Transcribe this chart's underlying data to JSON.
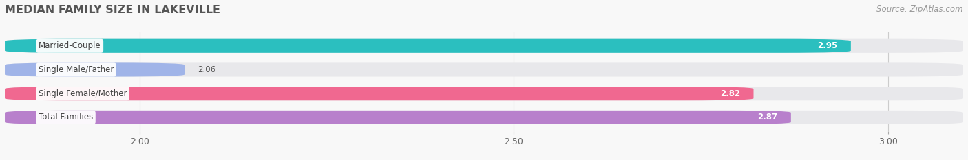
{
  "title": "MEDIAN FAMILY SIZE IN LAKEVILLE",
  "source": "Source: ZipAtlas.com",
  "categories": [
    "Married-Couple",
    "Single Male/Father",
    "Single Female/Mother",
    "Total Families"
  ],
  "values": [
    2.95,
    2.06,
    2.82,
    2.87
  ],
  "bar_colors": [
    "#2bbfbf",
    "#a0b4e8",
    "#f06890",
    "#b880cc"
  ],
  "bar_bg_color": "#e8e8eb",
  "xlim_min": 1.82,
  "xlim_max": 3.1,
  "data_min": 2.0,
  "data_max": 3.0,
  "xticks": [
    2.0,
    2.5,
    3.0
  ],
  "xtick_labels": [
    "2.00",
    "2.50",
    "3.00"
  ],
  "value_threshold": 2.5,
  "background_color": "#f8f8f8",
  "title_color": "#555555",
  "source_color": "#999999"
}
